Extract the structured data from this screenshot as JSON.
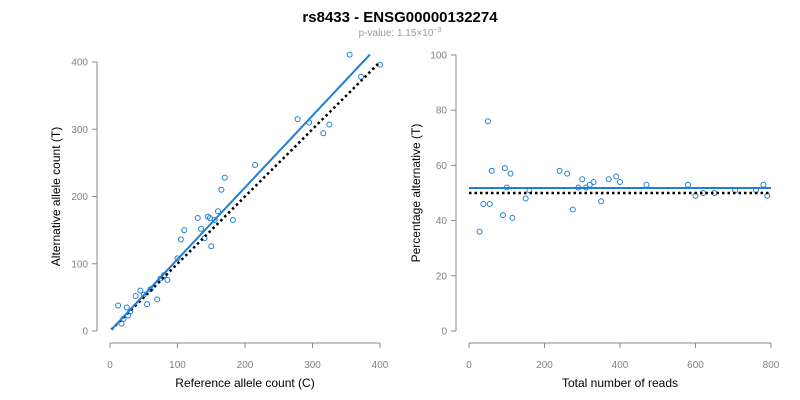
{
  "title": "rs8433 - ENSG00000132274",
  "subtitle_prefix": "p-value: 1.15",
  "subtitle_times": "×",
  "subtitle_base": "10",
  "subtitle_exp": "−3",
  "colors": {
    "accent": "#1f7fd8",
    "points": "#1f7fd8",
    "reference": "#000000",
    "axis": "#8a8a8a",
    "ticks": "#808080"
  },
  "chart_data": [
    {
      "type": "scatter",
      "title": "",
      "xlabel": "Reference allele count (C)",
      "ylabel": "Alternative allele count (T)",
      "xlim": [
        0,
        400
      ],
      "ylim": [
        0,
        400
      ],
      "xticks": [
        0,
        100,
        200,
        300,
        400
      ],
      "yticks": [
        0,
        100,
        200,
        300,
        400
      ],
      "points": [
        [
          12,
          38
        ],
        [
          17,
          11
        ],
        [
          20,
          18
        ],
        [
          25,
          35
        ],
        [
          27,
          23
        ],
        [
          30,
          29
        ],
        [
          38,
          52
        ],
        [
          45,
          60
        ],
        [
          50,
          54
        ],
        [
          55,
          40
        ],
        [
          60,
          62
        ],
        [
          70,
          47
        ],
        [
          75,
          78
        ],
        [
          80,
          83
        ],
        [
          85,
          76
        ],
        [
          100,
          108
        ],
        [
          105,
          136
        ],
        [
          110,
          150
        ],
        [
          130,
          168
        ],
        [
          135,
          152
        ],
        [
          140,
          138
        ],
        [
          145,
          170
        ],
        [
          148,
          168
        ],
        [
          150,
          126
        ],
        [
          155,
          165
        ],
        [
          160,
          178
        ],
        [
          165,
          210
        ],
        [
          170,
          228
        ],
        [
          182,
          165
        ],
        [
          215,
          247
        ],
        [
          278,
          315
        ],
        [
          295,
          310
        ],
        [
          316,
          294
        ],
        [
          325,
          307
        ],
        [
          355,
          411
        ],
        [
          372,
          378
        ],
        [
          400,
          396
        ]
      ],
      "fit_line": {
        "label": "fitted",
        "x": [
          2,
          385
        ],
        "y": [
          2,
          411
        ]
      },
      "reference_line": {
        "label": "expected",
        "x": [
          2,
          400
        ],
        "y": [
          2,
          400
        ]
      }
    },
    {
      "type": "scatter",
      "title": "",
      "xlabel": "Total number of reads",
      "ylabel": "Percentage alternative (T)",
      "xlim": [
        0,
        800
      ],
      "ylim": [
        0,
        100
      ],
      "xticks": [
        0,
        200,
        400,
        600,
        800
      ],
      "yticks": [
        0,
        20,
        40,
        60,
        80,
        100
      ],
      "points": [
        [
          28,
          36
        ],
        [
          38,
          46
        ],
        [
          50,
          76
        ],
        [
          55,
          46
        ],
        [
          60,
          58
        ],
        [
          90,
          42
        ],
        [
          95,
          59
        ],
        [
          100,
          52
        ],
        [
          110,
          57
        ],
        [
          115,
          41
        ],
        [
          150,
          48
        ],
        [
          160,
          51
        ],
        [
          240,
          58
        ],
        [
          260,
          57
        ],
        [
          275,
          44
        ],
        [
          290,
          52
        ],
        [
          300,
          55
        ],
        [
          310,
          52
        ],
        [
          320,
          53
        ],
        [
          330,
          54
        ],
        [
          350,
          47
        ],
        [
          370,
          55
        ],
        [
          390,
          56
        ],
        [
          400,
          54
        ],
        [
          470,
          53
        ],
        [
          580,
          53
        ],
        [
          600,
          49
        ],
        [
          620,
          50
        ],
        [
          650,
          50
        ],
        [
          705,
          51
        ],
        [
          760,
          51
        ],
        [
          780,
          53
        ],
        [
          790,
          49
        ]
      ],
      "fit_line": {
        "label": "fitted",
        "x": [
          0,
          800
        ],
        "y": [
          51.8,
          51.8
        ]
      },
      "reference_line": {
        "label": "expected",
        "x": [
          0,
          800
        ],
        "y": [
          50,
          50
        ]
      }
    }
  ]
}
